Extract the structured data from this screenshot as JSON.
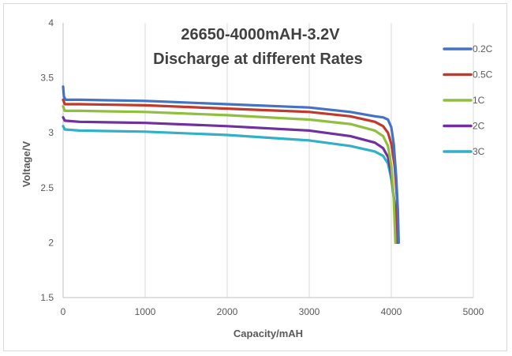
{
  "chart_data": {
    "type": "line",
    "title": [
      "26650-4000mAH-3.2V",
      "Discharge at different Rates"
    ],
    "xlabel": "Capacity/mAH",
    "ylabel": "Voltage/V",
    "xlim": [
      0,
      5000
    ],
    "ylim": [
      1.5,
      4
    ],
    "xticks": [
      "0",
      "1000",
      "2000",
      "3000",
      "4000",
      "5000"
    ],
    "yticks": [
      "1.5",
      "2",
      "2.5",
      "3",
      "3.5",
      "4"
    ],
    "grid": "vertical",
    "legend_position": "right",
    "series": [
      {
        "name": "0.2C",
        "color": "#4472c4",
        "points": [
          [
            0,
            3.42
          ],
          [
            10,
            3.33
          ],
          [
            30,
            3.3
          ],
          [
            200,
            3.3
          ],
          [
            1000,
            3.29
          ],
          [
            2000,
            3.26
          ],
          [
            3000,
            3.23
          ],
          [
            3500,
            3.19
          ],
          [
            3800,
            3.15
          ],
          [
            3900,
            3.14
          ],
          [
            3960,
            3.12
          ],
          [
            4000,
            3.05
          ],
          [
            4030,
            2.9
          ],
          [
            4060,
            2.6
          ],
          [
            4080,
            2.3
          ],
          [
            4090,
            2.0
          ]
        ]
      },
      {
        "name": "0.5C",
        "color": "#c0392b",
        "points": [
          [
            0,
            3.3
          ],
          [
            20,
            3.26
          ],
          [
            200,
            3.26
          ],
          [
            1000,
            3.25
          ],
          [
            2000,
            3.22
          ],
          [
            3000,
            3.19
          ],
          [
            3500,
            3.15
          ],
          [
            3800,
            3.1
          ],
          [
            3900,
            3.06
          ],
          [
            3960,
            3.0
          ],
          [
            4000,
            2.9
          ],
          [
            4040,
            2.7
          ],
          [
            4070,
            2.4
          ],
          [
            4080,
            2.0
          ]
        ]
      },
      {
        "name": "1C",
        "color": "#8fbf3f",
        "points": [
          [
            0,
            3.24
          ],
          [
            20,
            3.2
          ],
          [
            200,
            3.2
          ],
          [
            1000,
            3.19
          ],
          [
            2000,
            3.16
          ],
          [
            3000,
            3.12
          ],
          [
            3500,
            3.08
          ],
          [
            3800,
            3.02
          ],
          [
            3900,
            2.97
          ],
          [
            3960,
            2.88
          ],
          [
            4000,
            2.7
          ],
          [
            4030,
            2.4
          ],
          [
            4050,
            2.0
          ]
        ]
      },
      {
        "name": "2C",
        "color": "#7030a0",
        "points": [
          [
            0,
            3.14
          ],
          [
            20,
            3.11
          ],
          [
            200,
            3.1
          ],
          [
            1000,
            3.09
          ],
          [
            2000,
            3.06
          ],
          [
            3000,
            3.02
          ],
          [
            3500,
            2.97
          ],
          [
            3800,
            2.91
          ],
          [
            3900,
            2.86
          ],
          [
            3960,
            2.78
          ],
          [
            4000,
            2.62
          ],
          [
            4040,
            2.35
          ],
          [
            4060,
            2.0
          ]
        ]
      },
      {
        "name": "3C",
        "color": "#31b0c8",
        "points": [
          [
            0,
            3.06
          ],
          [
            20,
            3.03
          ],
          [
            200,
            3.02
          ],
          [
            1000,
            3.01
          ],
          [
            2000,
            2.98
          ],
          [
            3000,
            2.93
          ],
          [
            3500,
            2.88
          ],
          [
            3800,
            2.83
          ],
          [
            3900,
            2.79
          ],
          [
            3960,
            2.72
          ],
          [
            4000,
            2.58
          ],
          [
            4050,
            2.3
          ],
          [
            4080,
            2.0
          ]
        ]
      }
    ]
  }
}
